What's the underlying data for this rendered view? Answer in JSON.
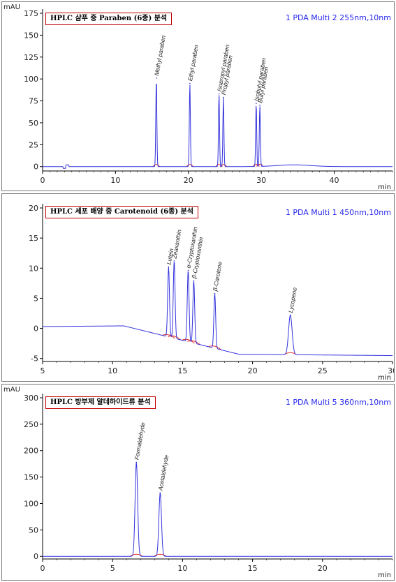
{
  "chart_data": [
    {
      "type": "line",
      "title": "HPLC 샴푸 중 Paraben (6종) 분석",
      "detector_label": "1 PDA Multi 2 255nm,10nm",
      "y_unit": "mAU",
      "x_unit": "min",
      "xlim": [
        0,
        48
      ],
      "ylim": [
        -5,
        175
      ],
      "x_ticks": [
        "0",
        "10",
        "20",
        "30",
        "40"
      ],
      "y_ticks": [
        "0",
        "25",
        "50",
        "75",
        "100",
        "125",
        "150",
        "175"
      ],
      "baseline": 0,
      "peaks": [
        {
          "name": "Methyl paraben",
          "x": 15.6,
          "y": 101
        },
        {
          "name": "Ethyl paraben",
          "x": 20.2,
          "y": 95
        },
        {
          "name": "Isopropyl paraben",
          "x": 24.2,
          "y": 83
        },
        {
          "name": "Propyl paraben",
          "x": 24.8,
          "y": 79
        },
        {
          "name": "Isobutyl paraben",
          "x": 29.3,
          "y": 72
        },
        {
          "name": "Butyl paraben",
          "x": 29.8,
          "y": 70
        }
      ]
    },
    {
      "type": "line",
      "title": "HPLC 세포 배양 중 Carotenoid (6종) 분석",
      "detector_label": "1 PDA Multi 1 450nm,10nm",
      "y_unit": "",
      "x_unit": "min",
      "xlim": [
        5,
        30
      ],
      "ylim": [
        -5.5,
        20
      ],
      "x_ticks": [
        "5",
        "10",
        "15",
        "20",
        "25",
        "30"
      ],
      "y_ticks": [
        "-5",
        "0",
        "5",
        "10",
        "15",
        "20"
      ],
      "baseline": 0.3,
      "peaks": [
        {
          "name": "Lutein",
          "x": 14.0,
          "y": 10.2
        },
        {
          "name": "Zeaxanthin",
          "x": 14.4,
          "y": 11.2
        },
        {
          "name": "α-Cryptoxanthin",
          "x": 15.4,
          "y": 9.6
        },
        {
          "name": "β-Cryptoxanthin",
          "x": 15.8,
          "y": 7.9
        },
        {
          "name": "β-Carotene",
          "x": 17.3,
          "y": 5.8
        },
        {
          "name": "Lycopene",
          "x": 22.7,
          "y": 2.2
        }
      ]
    },
    {
      "type": "line",
      "title": "HPLC 방부제 알데하이드류 분석",
      "detector_label": "1 PDA Multi 5 360nm,10nm",
      "y_unit": "mAU",
      "x_unit": "min",
      "xlim": [
        0,
        25
      ],
      "ylim": [
        -5,
        300
      ],
      "x_ticks": [
        "0",
        "5",
        "10",
        "15",
        "20"
      ],
      "y_ticks": [
        "0",
        "50",
        "100",
        "150",
        "200",
        "250",
        "300"
      ],
      "baseline": 0,
      "peaks": [
        {
          "name": "Formaldehyde",
          "x": 6.7,
          "y": 178
        },
        {
          "name": "Acetaldehyde",
          "x": 8.4,
          "y": 120
        }
      ]
    }
  ]
}
